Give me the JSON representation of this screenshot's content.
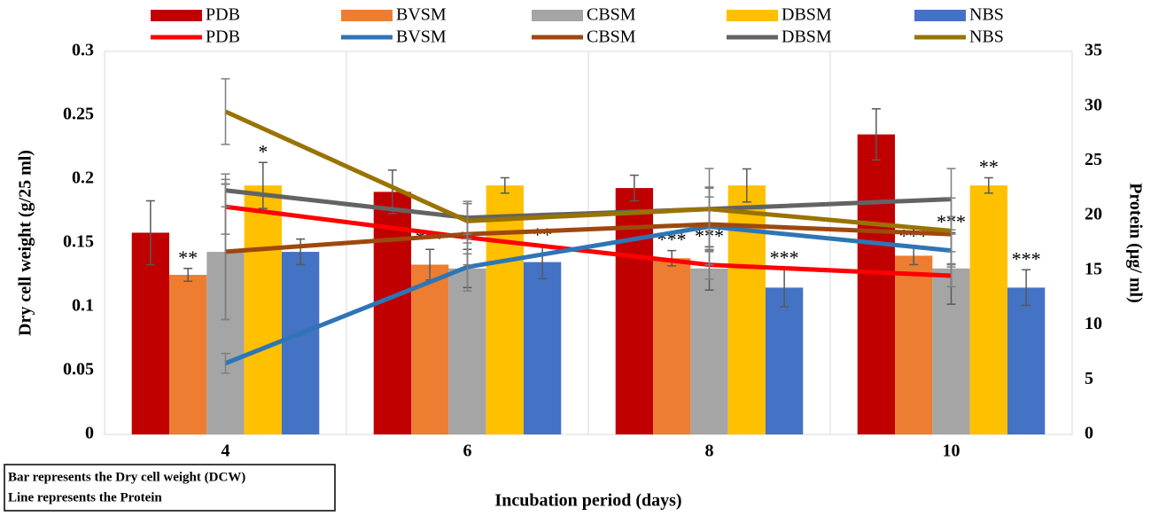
{
  "chart_data": {
    "type": "bar",
    "y_label": "Dry  cell weight (g/25 ml)",
    "y2_label": "Protein (µg/ ml)",
    "x_label": "Incubation period (days)",
    "note": [
      "Bar represents the Dry cell weight (DCW)",
      "Line represents the Protein"
    ],
    "categories": [
      "4",
      "6",
      "8",
      "10"
    ],
    "ylim": [
      0,
      0.3
    ],
    "yticks": [
      0,
      0.05,
      0.1,
      0.15,
      0.2,
      0.25,
      0.3
    ],
    "y2lim": [
      0,
      35
    ],
    "y2ticks": [
      0,
      5,
      10,
      15,
      20,
      25,
      30,
      35
    ],
    "grid": false,
    "series": [
      {
        "name": "PDB",
        "type": "bar",
        "color": "#c00000",
        "values": [
          0.158,
          0.19,
          0.193,
          0.235
        ],
        "errors": [
          0.025,
          0.017,
          0.01,
          0.02
        ],
        "significance": [
          null,
          null,
          null,
          null
        ]
      },
      {
        "name": "BVSM",
        "type": "bar",
        "color": "#ed7d31",
        "values": [
          0.125,
          0.133,
          0.138,
          0.14
        ],
        "errors": [
          0.005,
          0.012,
          0.006,
          0.007
        ],
        "significance": [
          "**",
          "***",
          "***",
          "***"
        ]
      },
      {
        "name": "CBSM",
        "type": "bar",
        "color": "#a5a5a5",
        "values": [
          0.143,
          0.13,
          0.13,
          0.13
        ],
        "errors": [
          0.053,
          0.015,
          0.017,
          0.028
        ],
        "significance": [
          null,
          "**",
          "***",
          "***"
        ]
      },
      {
        "name": "DBSM",
        "type": "bar",
        "color": "#ffc000",
        "values": [
          0.195,
          0.195,
          0.195,
          0.195
        ],
        "errors": [
          0.018,
          0.006,
          0.013,
          0.006
        ],
        "significance": [
          "*",
          null,
          null,
          "**"
        ]
      },
      {
        "name": "NBS",
        "type": "bar",
        "color": "#4472c4",
        "values": [
          0.143,
          0.135,
          0.115,
          0.115
        ],
        "errors": [
          0.01,
          0.013,
          0.015,
          0.014
        ],
        "significance": [
          null,
          "**",
          "***",
          "***"
        ]
      },
      {
        "name": "PDB",
        "type": "line",
        "axis": "y2",
        "color": "#ff0000",
        "values": [
          20.8,
          18.0,
          15.5,
          14.5
        ],
        "errors": [
          2.5,
          1.5,
          1.3,
          1.0
        ]
      },
      {
        "name": "BVSM",
        "type": "line",
        "axis": "y2",
        "color": "#2e75b6",
        "values": [
          6.5,
          15.3,
          19.0,
          16.8
        ],
        "errors": [
          0.9,
          2.2,
          3.5,
          1.5
        ]
      },
      {
        "name": "CBSM",
        "type": "line",
        "axis": "y2",
        "color": "#9e480e",
        "values": [
          16.7,
          18.3,
          19.2,
          18.3
        ],
        "errors": [
          6.2,
          2.8,
          2.5,
          1.6
        ]
      },
      {
        "name": "DBSM",
        "type": "line",
        "axis": "y2",
        "color": "#636363",
        "values": [
          22.3,
          19.8,
          20.6,
          21.5
        ],
        "errors": [
          1.5,
          1.5,
          3.7,
          2.8
        ]
      },
      {
        "name": "NBS",
        "type": "line",
        "axis": "y2",
        "color": "#997300",
        "values": [
          29.5,
          19.5,
          20.6,
          18.6
        ],
        "errors": [
          3.0,
          1.6,
          2.0,
          3.0
        ]
      }
    ]
  }
}
